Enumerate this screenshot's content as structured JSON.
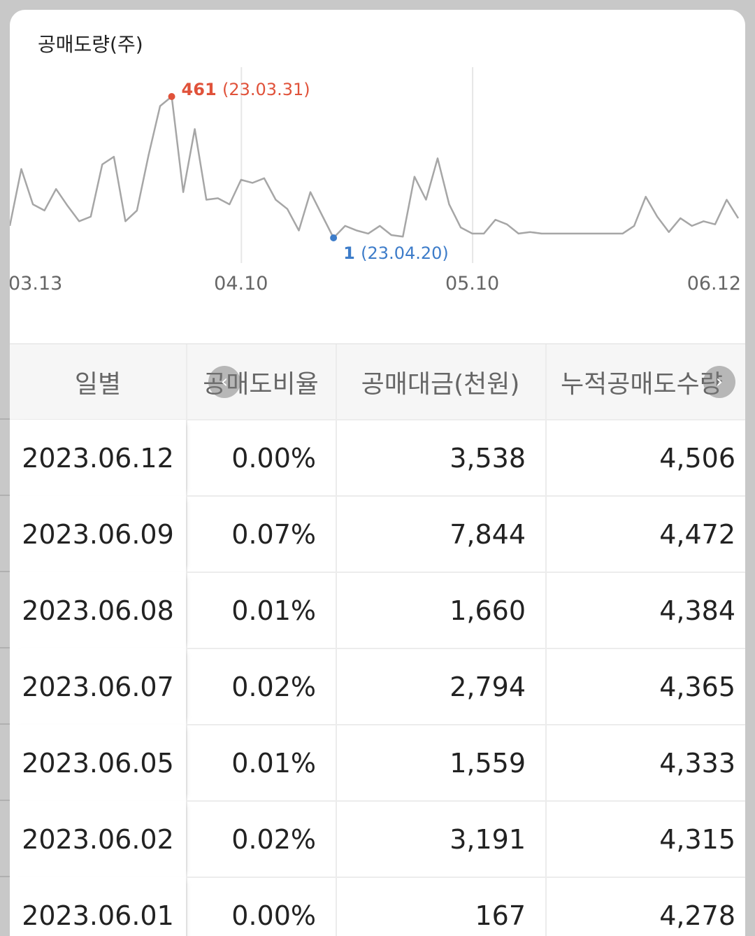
{
  "chart": {
    "title": "공매도량(주)",
    "x_tick_labels": [
      "03.13",
      "04.10",
      "05.10",
      "06.12"
    ],
    "max_annotation": {
      "value": "461",
      "date": "(23.03.31)"
    },
    "min_annotation": {
      "value": "1",
      "date": "(23.04.20)"
    },
    "colors": {
      "line": "#a6a6a6",
      "max": "#e0523a",
      "min": "#3d7cc9",
      "grid": "#e6e6e6"
    }
  },
  "chart_data": {
    "type": "line",
    "title": "공매도량(주)",
    "xlabel": "",
    "ylabel": "",
    "x_ticks": [
      "03.13",
      "04.10",
      "05.10",
      "06.12"
    ],
    "ylim": [
      0,
      480
    ],
    "series": [
      {
        "values": [
          40,
          225,
          110,
          90,
          160,
          105,
          55,
          70,
          240,
          265,
          55,
          90,
          270,
          430,
          461,
          150,
          355,
          125,
          130,
          110,
          190,
          180,
          195,
          125,
          95,
          25,
          150,
          75,
          1,
          40,
          25,
          15,
          40,
          10,
          5,
          200,
          125,
          260,
          110,
          35,
          15,
          15,
          60,
          45,
          15,
          20,
          15,
          15,
          15,
          15,
          15,
          15,
          15,
          15,
          40,
          135,
          70,
          20,
          65,
          40,
          55,
          45,
          125,
          65
        ]
      }
    ]
  },
  "table": {
    "headers": [
      "일별",
      "공매도비율",
      "공매대금(천원)",
      "누적공매도수량"
    ],
    "rows": [
      {
        "date": "2023.06.12",
        "ratio": "0.00%",
        "amount": "3,538",
        "cumulative": "4,506"
      },
      {
        "date": "2023.06.09",
        "ratio": "0.07%",
        "amount": "7,844",
        "cumulative": "4,472"
      },
      {
        "date": "2023.06.08",
        "ratio": "0.01%",
        "amount": "1,660",
        "cumulative": "4,384"
      },
      {
        "date": "2023.06.07",
        "ratio": "0.02%",
        "amount": "2,794",
        "cumulative": "4,365"
      },
      {
        "date": "2023.06.05",
        "ratio": "0.01%",
        "amount": "1,559",
        "cumulative": "4,333"
      },
      {
        "date": "2023.06.02",
        "ratio": "0.02%",
        "amount": "3,191",
        "cumulative": "4,315"
      },
      {
        "date": "2023.06.01",
        "ratio": "0.00%",
        "amount": "167",
        "cumulative": "4,278"
      }
    ],
    "scroll_left_icon": "chevron-left-icon",
    "scroll_right_icon": "chevron-right-icon"
  }
}
